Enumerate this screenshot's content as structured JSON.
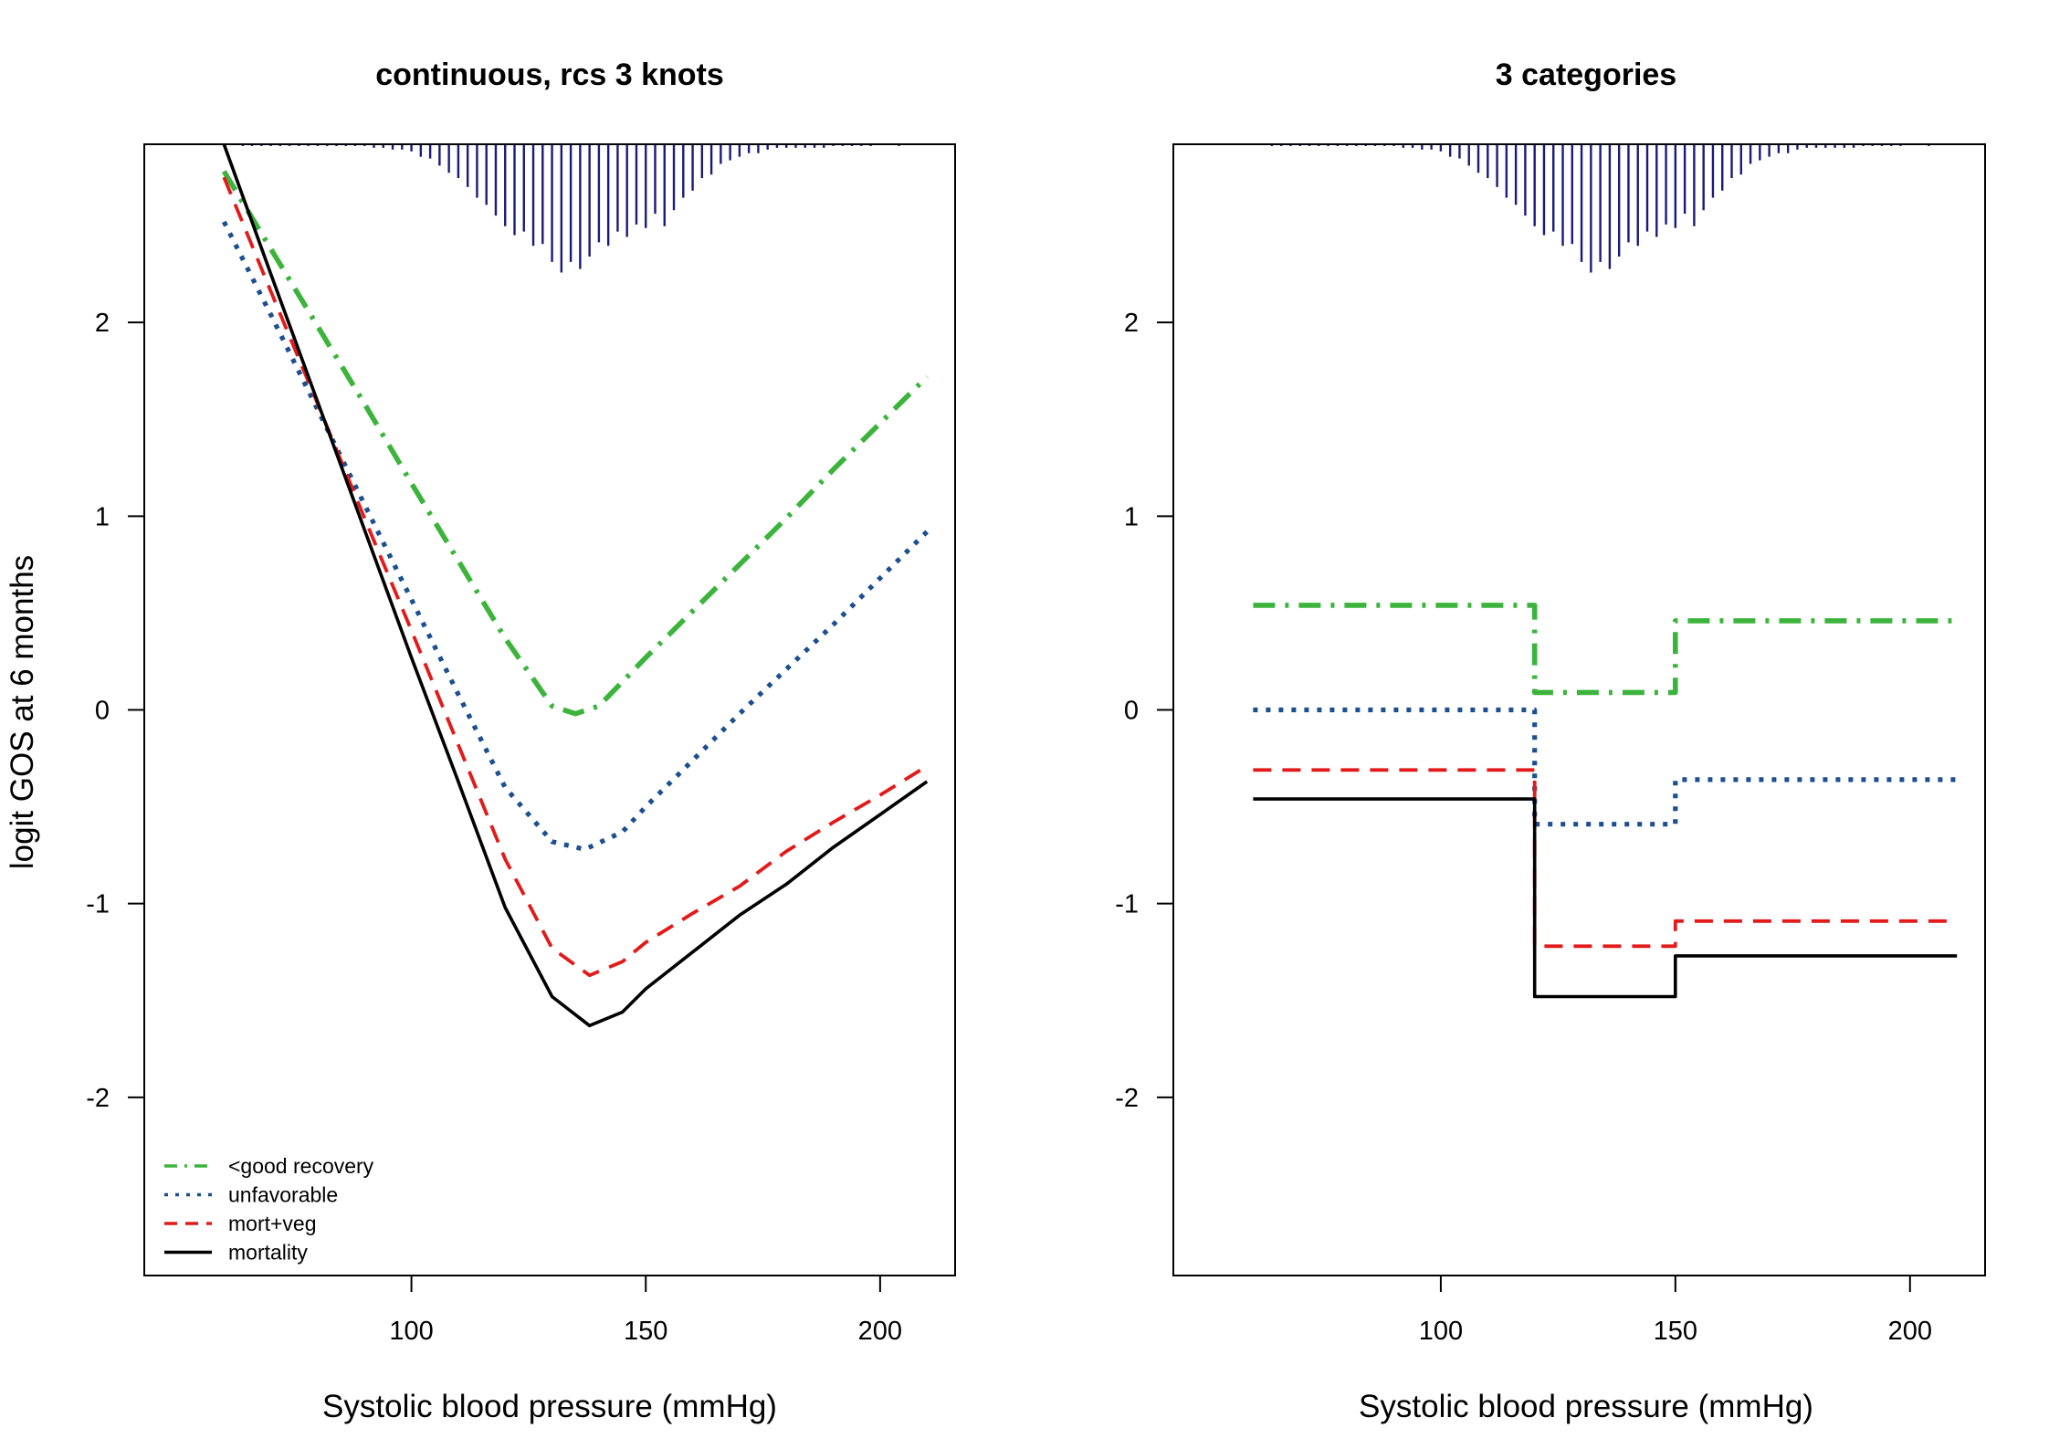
{
  "ylabel": "logit GOS at 6 months",
  "colors": {
    "good": "#3CB43C",
    "unfav": "#1B4F8F",
    "mortveg": "#E21A1A",
    "mort": "#000000",
    "rug": "#1A1A7A"
  },
  "chart_data": [
    {
      "type": "line",
      "title": "continuous, rcs 3 knots",
      "xlabel": "Systolic blood pressure (mmHg)",
      "ylabel": "logit GOS at 6 months",
      "xlim": [
        43,
        216
      ],
      "ylim": [
        -2.92,
        2.92
      ],
      "xticks": [
        "100",
        "150",
        "200"
      ],
      "yticks": [
        "-2",
        "-1",
        "0",
        "1",
        "2"
      ],
      "legend_position": "bottom-left",
      "legend": [
        "<good recovery",
        "unfavorable",
        "mort+veg",
        "mortality"
      ],
      "series": [
        {
          "name": "<good recovery",
          "style": "dashdot",
          "color": "#3CB43C",
          "x": [
            60,
            70,
            80,
            90,
            100,
            110,
            120,
            130,
            135,
            140,
            150,
            160,
            170,
            180,
            190,
            200,
            210
          ],
          "y": [
            2.78,
            2.38,
            1.98,
            1.58,
            1.17,
            0.77,
            0.37,
            0.02,
            -0.02,
            0.02,
            0.27,
            0.51,
            0.75,
            0.99,
            1.24,
            1.48,
            1.72
          ]
        },
        {
          "name": "unfavorable",
          "style": "dotted",
          "color": "#1B4F8F",
          "x": [
            60,
            70,
            80,
            90,
            100,
            110,
            120,
            130,
            137,
            145,
            150,
            160,
            170,
            180,
            190,
            200,
            210
          ],
          "y": [
            2.52,
            2.04,
            1.55,
            1.06,
            0.57,
            0.08,
            -0.4,
            -0.68,
            -0.72,
            -0.63,
            -0.5,
            -0.26,
            -0.02,
            0.21,
            0.44,
            0.68,
            0.92
          ]
        },
        {
          "name": "mort+veg",
          "style": "dashed",
          "color": "#E21A1A",
          "x": [
            60,
            70,
            80,
            90,
            100,
            110,
            120,
            130,
            138,
            145,
            150,
            160,
            170,
            180,
            190,
            200,
            210
          ],
          "y": [
            2.75,
            2.16,
            1.58,
            0.99,
            0.41,
            -0.18,
            -0.77,
            -1.23,
            -1.37,
            -1.3,
            -1.2,
            -1.05,
            -0.91,
            -0.73,
            -0.58,
            -0.44,
            -0.29
          ]
        },
        {
          "name": "mortality",
          "style": "solid",
          "color": "#000000",
          "x": [
            60,
            70,
            80,
            90,
            100,
            110,
            120,
            130,
            138,
            145,
            150,
            160,
            170,
            180,
            190,
            200,
            210
          ],
          "y": [
            2.92,
            2.25,
            1.59,
            0.93,
            0.27,
            -0.37,
            -1.02,
            -1.48,
            -1.63,
            -1.56,
            -1.44,
            -1.25,
            -1.06,
            -0.9,
            -0.71,
            -0.54,
            -0.37
          ]
        }
      ],
      "rug": {
        "x": [
          62,
          64,
          66,
          68,
          70,
          72,
          74,
          76,
          78,
          80,
          82,
          84,
          86,
          88,
          90,
          92,
          94,
          96,
          98,
          100,
          102,
          104,
          106,
          108,
          110,
          112,
          114,
          116,
          118,
          120,
          122,
          124,
          126,
          128,
          130,
          132,
          134,
          136,
          138,
          140,
          142,
          144,
          146,
          148,
          150,
          152,
          154,
          156,
          158,
          160,
          162,
          164,
          166,
          168,
          170,
          172,
          174,
          176,
          178,
          180,
          182,
          184,
          186,
          188,
          190,
          192,
          194,
          196,
          198,
          200,
          202,
          204,
          206,
          208,
          210
        ],
        "height": [
          0.0,
          0.01,
          0.01,
          0.01,
          0.01,
          0.01,
          0.01,
          0.01,
          0.01,
          0.01,
          0.01,
          0.01,
          0.01,
          0.01,
          0.01,
          0.02,
          0.02,
          0.03,
          0.03,
          0.04,
          0.07,
          0.08,
          0.12,
          0.16,
          0.19,
          0.24,
          0.3,
          0.34,
          0.4,
          0.46,
          0.51,
          0.49,
          0.57,
          0.56,
          0.66,
          0.72,
          0.66,
          0.7,
          0.63,
          0.55,
          0.57,
          0.49,
          0.52,
          0.45,
          0.47,
          0.39,
          0.46,
          0.37,
          0.3,
          0.26,
          0.19,
          0.17,
          0.11,
          0.09,
          0.07,
          0.05,
          0.05,
          0.03,
          0.02,
          0.02,
          0.02,
          0.02,
          0.02,
          0.02,
          0.01,
          0.01,
          0.01,
          0.01,
          0.01,
          0.0,
          0.0,
          0.01,
          0.0,
          0.0,
          0.0
        ]
      }
    },
    {
      "type": "line",
      "title": "3 categories",
      "xlabel": "Systolic blood pressure (mmHg)",
      "ylabel": "",
      "xlim": [
        43,
        216
      ],
      "ylim": [
        -2.92,
        2.92
      ],
      "xticks": [
        "100",
        "150",
        "200"
      ],
      "yticks": [
        "-2",
        "-1",
        "0",
        "1",
        "2"
      ],
      "series": [
        {
          "name": "<good recovery",
          "style": "dashdot",
          "color": "#3CB43C",
          "x": [
            60,
            120,
            120,
            150,
            150,
            210
          ],
          "y": [
            0.54,
            0.54,
            0.09,
            0.09,
            0.46,
            0.46
          ]
        },
        {
          "name": "unfavorable",
          "style": "dotted",
          "color": "#1B4F8F",
          "x": [
            60,
            120,
            120,
            150,
            150,
            210
          ],
          "y": [
            0.0,
            0.0,
            -0.59,
            -0.59,
            -0.36,
            -0.36
          ]
        },
        {
          "name": "mort+veg",
          "style": "dashed",
          "color": "#E21A1A",
          "x": [
            60,
            120,
            120,
            150,
            150,
            210
          ],
          "y": [
            -0.31,
            -0.31,
            -1.22,
            -1.22,
            -1.09,
            -1.09
          ]
        },
        {
          "name": "mortality",
          "style": "solid",
          "color": "#000000",
          "x": [
            60,
            120,
            120,
            150,
            150,
            210
          ],
          "y": [
            -0.46,
            -0.46,
            -1.48,
            -1.48,
            -1.27,
            -1.27
          ]
        }
      ],
      "rug": {
        "x": [
          62,
          64,
          66,
          68,
          70,
          72,
          74,
          76,
          78,
          80,
          82,
          84,
          86,
          88,
          90,
          92,
          94,
          96,
          98,
          100,
          102,
          104,
          106,
          108,
          110,
          112,
          114,
          116,
          118,
          120,
          122,
          124,
          126,
          128,
          130,
          132,
          134,
          136,
          138,
          140,
          142,
          144,
          146,
          148,
          150,
          152,
          154,
          156,
          158,
          160,
          162,
          164,
          166,
          168,
          170,
          172,
          174,
          176,
          178,
          180,
          182,
          184,
          186,
          188,
          190,
          192,
          194,
          196,
          198,
          200,
          202,
          204,
          206,
          208,
          210
        ],
        "height": [
          0.0,
          0.01,
          0.01,
          0.01,
          0.01,
          0.01,
          0.01,
          0.01,
          0.01,
          0.01,
          0.01,
          0.01,
          0.01,
          0.01,
          0.01,
          0.02,
          0.02,
          0.03,
          0.03,
          0.04,
          0.07,
          0.08,
          0.12,
          0.16,
          0.19,
          0.24,
          0.3,
          0.34,
          0.4,
          0.46,
          0.51,
          0.49,
          0.57,
          0.56,
          0.66,
          0.72,
          0.66,
          0.7,
          0.63,
          0.55,
          0.57,
          0.49,
          0.52,
          0.45,
          0.47,
          0.39,
          0.46,
          0.37,
          0.3,
          0.26,
          0.19,
          0.17,
          0.11,
          0.09,
          0.07,
          0.05,
          0.05,
          0.03,
          0.02,
          0.02,
          0.02,
          0.02,
          0.02,
          0.02,
          0.01,
          0.01,
          0.01,
          0.01,
          0.01,
          0.0,
          0.0,
          0.01,
          0.0,
          0.0,
          0.0
        ]
      }
    }
  ]
}
